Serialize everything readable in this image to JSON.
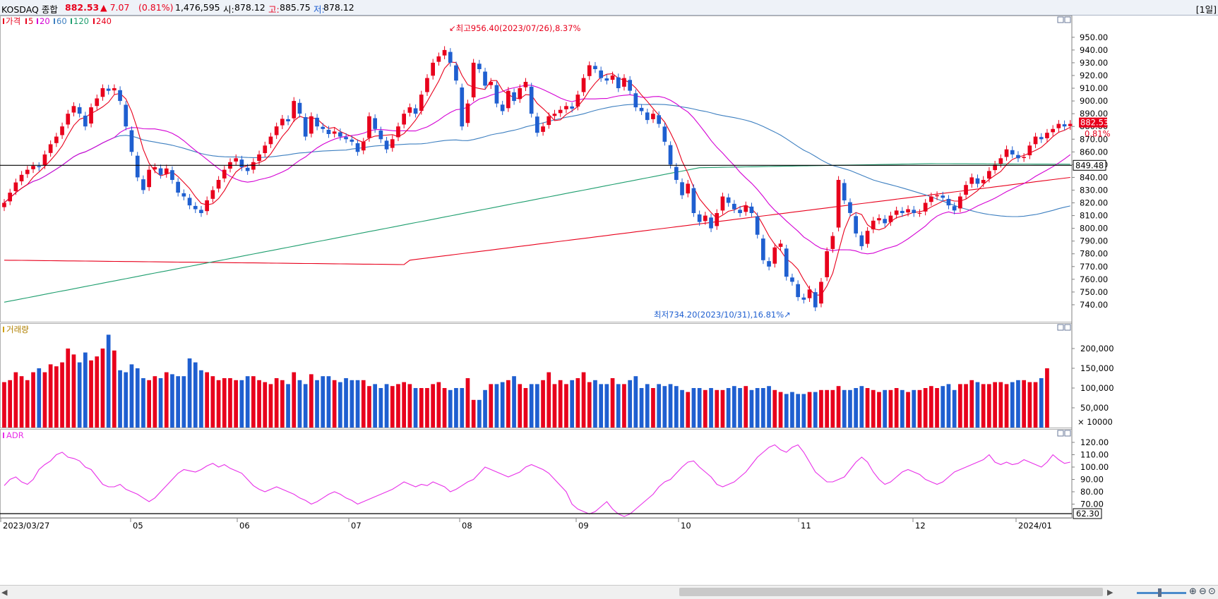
{
  "header": {
    "name": "KOSDAQ 종합",
    "price": "882.53",
    "change": "▲ 7.07",
    "change_pct": "(0.81%)",
    "volume": "1,476,595",
    "open_label": "시:",
    "open": "878.12",
    "high_label": "고:",
    "high": "885.75",
    "low_label": "저:",
    "low": "878.12",
    "period": "[1일]"
  },
  "colors": {
    "up": "#e8001c",
    "down": "#1f5fd0",
    "ma5": "#e8001c",
    "ma20": "#d400d4",
    "ma60": "#3d7fc0",
    "ma120": "#1e9e6e",
    "ma240": "#e8001c",
    "adr": "#e830e8"
  },
  "price_panel": {
    "legend": [
      "가격",
      "5",
      "20",
      "60",
      "120",
      "240"
    ],
    "high_annotation": "최고956.40(2023/07/26),8.37%",
    "low_annotation": "최저734.20(2023/10/31),16.81%",
    "last_price": "882.53",
    "last_pct": "0.81%",
    "ref_line": "849.48",
    "y_ticks": [
      "950.00",
      "940.00",
      "930.00",
      "920.00",
      "910.00",
      "900.00",
      "890.00",
      "880.00",
      "870.00",
      "860.00",
      "850.00",
      "840.00",
      "830.00",
      "820.00",
      "810.00",
      "800.00",
      "790.00",
      "780.00",
      "770.00",
      "760.00",
      "750.00",
      "740.00"
    ]
  },
  "volume_panel": {
    "legend": "거래량",
    "y_ticks": [
      "200,000",
      "150,000",
      "100,000",
      "50,000"
    ],
    "unit": "× 10000"
  },
  "adr_panel": {
    "legend": "ADR",
    "y_ticks": [
      "120.00",
      "110.00",
      "100.00",
      "90.00",
      "80.00",
      "70.00"
    ],
    "ref_line": "62.30"
  },
  "x_labels": [
    "2023/03/27",
    "05",
    "06",
    "07",
    "08",
    "09",
    "10",
    "11",
    "12",
    "2024/01"
  ],
  "chart_data": [
    {
      "type": "candlestick",
      "title": "KOSDAQ 종합",
      "x_range": [
        "2023/03/27",
        "2024/01/08"
      ],
      "ylim": [
        730,
        960
      ],
      "points": [
        [
          0,
          820
        ],
        [
          1,
          828
        ],
        [
          2,
          836
        ],
        [
          3,
          842
        ],
        [
          4,
          846
        ],
        [
          5,
          849
        ],
        [
          6,
          848
        ],
        [
          7,
          858
        ],
        [
          8,
          866
        ],
        [
          9,
          872
        ],
        [
          10,
          880
        ],
        [
          11,
          890
        ],
        [
          12,
          896
        ],
        [
          13,
          890
        ],
        [
          14,
          880
        ],
        [
          15,
          895
        ],
        [
          16,
          902
        ],
        [
          17,
          910
        ],
        [
          18,
          908
        ],
        [
          19,
          910
        ],
        [
          20,
          900
        ],
        [
          21,
          880
        ],
        [
          22,
          860
        ],
        [
          23,
          840
        ],
        [
          24,
          830
        ],
        [
          25,
          846
        ],
        [
          26,
          848
        ],
        [
          27,
          842
        ],
        [
          28,
          847
        ],
        [
          29,
          838
        ],
        [
          30,
          828
        ],
        [
          31,
          825
        ],
        [
          32,
          818
        ],
        [
          33,
          815
        ],
        [
          34,
          812
        ],
        [
          35,
          822
        ],
        [
          36,
          830
        ],
        [
          37,
          838
        ],
        [
          38,
          846
        ],
        [
          39,
          852
        ],
        [
          40,
          855
        ],
        [
          41,
          848
        ],
        [
          42,
          845
        ],
        [
          43,
          852
        ],
        [
          44,
          858
        ],
        [
          45,
          865
        ],
        [
          46,
          872
        ],
        [
          47,
          880
        ],
        [
          48,
          886
        ],
        [
          49,
          884
        ],
        [
          50,
          900
        ],
        [
          51,
          890
        ],
        [
          52,
          872
        ],
        [
          53,
          888
        ],
        [
          54,
          880
        ],
        [
          55,
          878
        ],
        [
          56,
          874
        ],
        [
          57,
          876
        ],
        [
          58,
          872
        ],
        [
          59,
          870
        ],
        [
          60,
          868
        ],
        [
          61,
          860
        ],
        [
          62,
          868
        ],
        [
          63,
          888
        ],
        [
          64,
          878
        ],
        [
          65,
          870
        ],
        [
          66,
          862
        ],
        [
          67,
          870
        ],
        [
          68,
          880
        ],
        [
          69,
          890
        ],
        [
          70,
          895
        ],
        [
          71,
          890
        ],
        [
          72,
          905
        ],
        [
          73,
          918
        ],
        [
          74,
          930
        ],
        [
          75,
          935
        ],
        [
          76,
          940
        ],
        [
          77,
          930
        ],
        [
          78,
          916
        ],
        [
          79,
          880
        ],
        [
          80,
          898
        ],
        [
          81,
          930
        ],
        [
          82,
          925
        ],
        [
          83,
          912
        ],
        [
          84,
          915
        ],
        [
          85,
          898
        ],
        [
          86,
          892
        ],
        [
          87,
          908
        ],
        [
          88,
          900
        ],
        [
          89,
          910
        ],
        [
          90,
          915
        ],
        [
          91,
          890
        ],
        [
          92,
          875
        ],
        [
          93,
          880
        ],
        [
          94,
          888
        ],
        [
          95,
          890
        ],
        [
          96,
          893
        ],
        [
          97,
          896
        ],
        [
          98,
          894
        ],
        [
          99,
          905
        ],
        [
          100,
          918
        ],
        [
          101,
          928
        ],
        [
          102,
          925
        ],
        [
          103,
          918
        ],
        [
          104,
          916
        ],
        [
          105,
          920
        ],
        [
          106,
          910
        ],
        [
          107,
          918
        ],
        [
          108,
          908
        ],
        [
          109,
          895
        ],
        [
          110,
          892
        ],
        [
          111,
          885
        ],
        [
          112,
          890
        ],
        [
          113,
          882
        ],
        [
          114,
          868
        ],
        [
          115,
          850
        ],
        [
          116,
          838
        ],
        [
          117,
          826
        ],
        [
          118,
          835
        ],
        [
          119,
          812
        ],
        [
          120,
          805
        ],
        [
          121,
          810
        ],
        [
          122,
          800
        ],
        [
          123,
          812
        ],
        [
          124,
          825
        ],
        [
          125,
          820
        ],
        [
          126,
          815
        ],
        [
          127,
          812
        ],
        [
          128,
          818
        ],
        [
          129,
          812
        ],
        [
          130,
          795
        ],
        [
          131,
          775
        ],
        [
          132,
          770
        ],
        [
          133,
          785
        ],
        [
          134,
          788
        ],
        [
          135,
          762
        ],
        [
          136,
          758
        ],
        [
          137,
          746
        ],
        [
          138,
          744
        ],
        [
          139,
          752
        ],
        [
          140,
          738
        ],
        [
          141,
          758
        ],
        [
          142,
          782
        ],
        [
          143,
          794
        ],
        [
          144,
          838
        ],
        [
          145,
          822
        ],
        [
          146,
          812
        ],
        [
          147,
          796
        ],
        [
          148,
          786
        ],
        [
          149,
          798
        ],
        [
          150,
          806
        ],
        [
          151,
          808
        ],
        [
          152,
          804
        ],
        [
          153,
          810
        ],
        [
          154,
          814
        ],
        [
          155,
          812
        ],
        [
          156,
          815
        ],
        [
          157,
          812
        ],
        [
          158,
          812
        ],
        [
          159,
          820
        ],
        [
          160,
          825
        ],
        [
          161,
          826
        ],
        [
          162,
          824
        ],
        [
          163,
          818
        ],
        [
          164,
          814
        ],
        [
          165,
          825
        ],
        [
          166,
          834
        ],
        [
          167,
          840
        ],
        [
          168,
          835
        ],
        [
          169,
          838
        ],
        [
          170,
          845
        ],
        [
          171,
          850
        ],
        [
          172,
          855
        ],
        [
          173,
          862
        ],
        [
          174,
          858
        ],
        [
          175,
          855
        ],
        [
          176,
          856
        ],
        [
          177,
          865
        ],
        [
          178,
          872
        ],
        [
          179,
          870
        ],
        [
          180,
          875
        ],
        [
          181,
          878
        ],
        [
          182,
          882
        ],
        [
          183,
          880
        ],
        [
          184,
          882
        ]
      ],
      "note": "points are [day_index, close]; candles drawn with open/close/high/low derived around close",
      "annotations": [
        "최고956.40(2023/07/26),8.37%",
        "최저734.20(2023/10/31),16.81%"
      ]
    },
    {
      "type": "bar",
      "title": "거래량",
      "ylim": [
        0,
        250000
      ],
      "values": [
        115,
        120,
        140,
        130,
        120,
        140,
        150,
        140,
        160,
        155,
        165,
        200,
        185,
        165,
        190,
        170,
        180,
        200,
        235,
        195,
        145,
        140,
        160,
        150,
        125,
        120,
        130,
        125,
        140,
        135,
        130,
        130,
        175,
        165,
        145,
        140,
        130,
        120,
        125,
        125,
        120,
        120,
        130,
        130,
        120,
        115,
        110,
        125,
        120,
        110,
        140,
        120,
        110,
        135,
        120,
        130,
        130,
        120,
        115,
        125,
        120,
        120,
        120,
        105,
        110,
        100,
        110,
        105,
        110,
        115,
        110,
        100,
        100,
        100,
        110,
        115,
        100,
        95,
        100,
        100,
        125,
        70,
        70,
        95,
        110,
        110,
        115,
        120,
        130,
        110,
        100,
        110,
        110,
        120,
        140,
        110,
        120,
        110,
        120,
        125,
        140,
        115,
        120,
        110,
        110,
        125,
        110,
        110,
        120,
        130,
        100,
        110,
        100,
        110,
        105,
        110,
        105,
        95,
        90,
        100,
        100,
        95,
        100,
        95,
        95,
        100,
        105,
        100,
        105,
        95,
        100,
        100,
        105,
        95,
        90,
        85,
        90,
        85,
        85,
        90,
        90,
        95,
        95,
        95,
        105,
        95,
        95,
        100,
        105,
        100,
        95,
        90,
        95,
        95,
        100,
        95,
        90,
        95,
        95,
        100,
        105,
        100,
        105,
        110,
        95,
        110,
        110,
        120,
        115,
        110,
        110,
        115,
        115,
        110,
        115,
        120,
        120,
        115,
        115,
        125,
        150
      ],
      "unit": "× 10000"
    },
    {
      "type": "line",
      "title": "ADR",
      "ylim": [
        60,
        125
      ],
      "values": [
        85,
        90,
        92,
        88,
        86,
        90,
        98,
        102,
        105,
        110,
        112,
        108,
        107,
        105,
        100,
        98,
        92,
        86,
        84,
        84,
        86,
        82,
        80,
        78,
        75,
        72,
        75,
        80,
        85,
        90,
        95,
        98,
        97,
        96,
        98,
        101,
        103,
        100,
        102,
        99,
        97,
        95,
        90,
        85,
        82,
        80,
        82,
        84,
        82,
        80,
        78,
        75,
        73,
        70,
        72,
        75,
        78,
        80,
        78,
        75,
        73,
        70,
        72,
        74,
        76,
        78,
        80,
        82,
        85,
        88,
        86,
        84,
        86,
        85,
        88,
        86,
        84,
        80,
        82,
        85,
        88,
        90,
        95,
        100,
        98,
        96,
        94,
        92,
        94,
        96,
        100,
        102,
        100,
        98,
        95,
        90,
        85,
        80,
        70,
        66,
        64,
        62,
        64,
        68,
        72,
        66,
        62,
        60,
        62,
        66,
        70,
        74,
        78,
        84,
        88,
        90,
        95,
        100,
        104,
        105,
        100,
        96,
        92,
        86,
        84,
        86,
        88,
        92,
        96,
        102,
        108,
        112,
        116,
        118,
        114,
        112,
        116,
        118,
        112,
        104,
        96,
        92,
        88,
        88,
        90,
        92,
        98,
        104,
        108,
        104,
        96,
        90,
        86,
        88,
        92,
        96,
        98,
        96,
        94,
        90,
        88,
        86,
        88,
        92,
        96,
        98,
        100,
        102,
        104,
        106,
        110,
        104,
        102,
        104,
        102,
        103,
        106,
        104,
        102,
        100,
        104,
        110,
        106,
        103,
        104
      ],
      "ref_line": 62.3
    }
  ]
}
